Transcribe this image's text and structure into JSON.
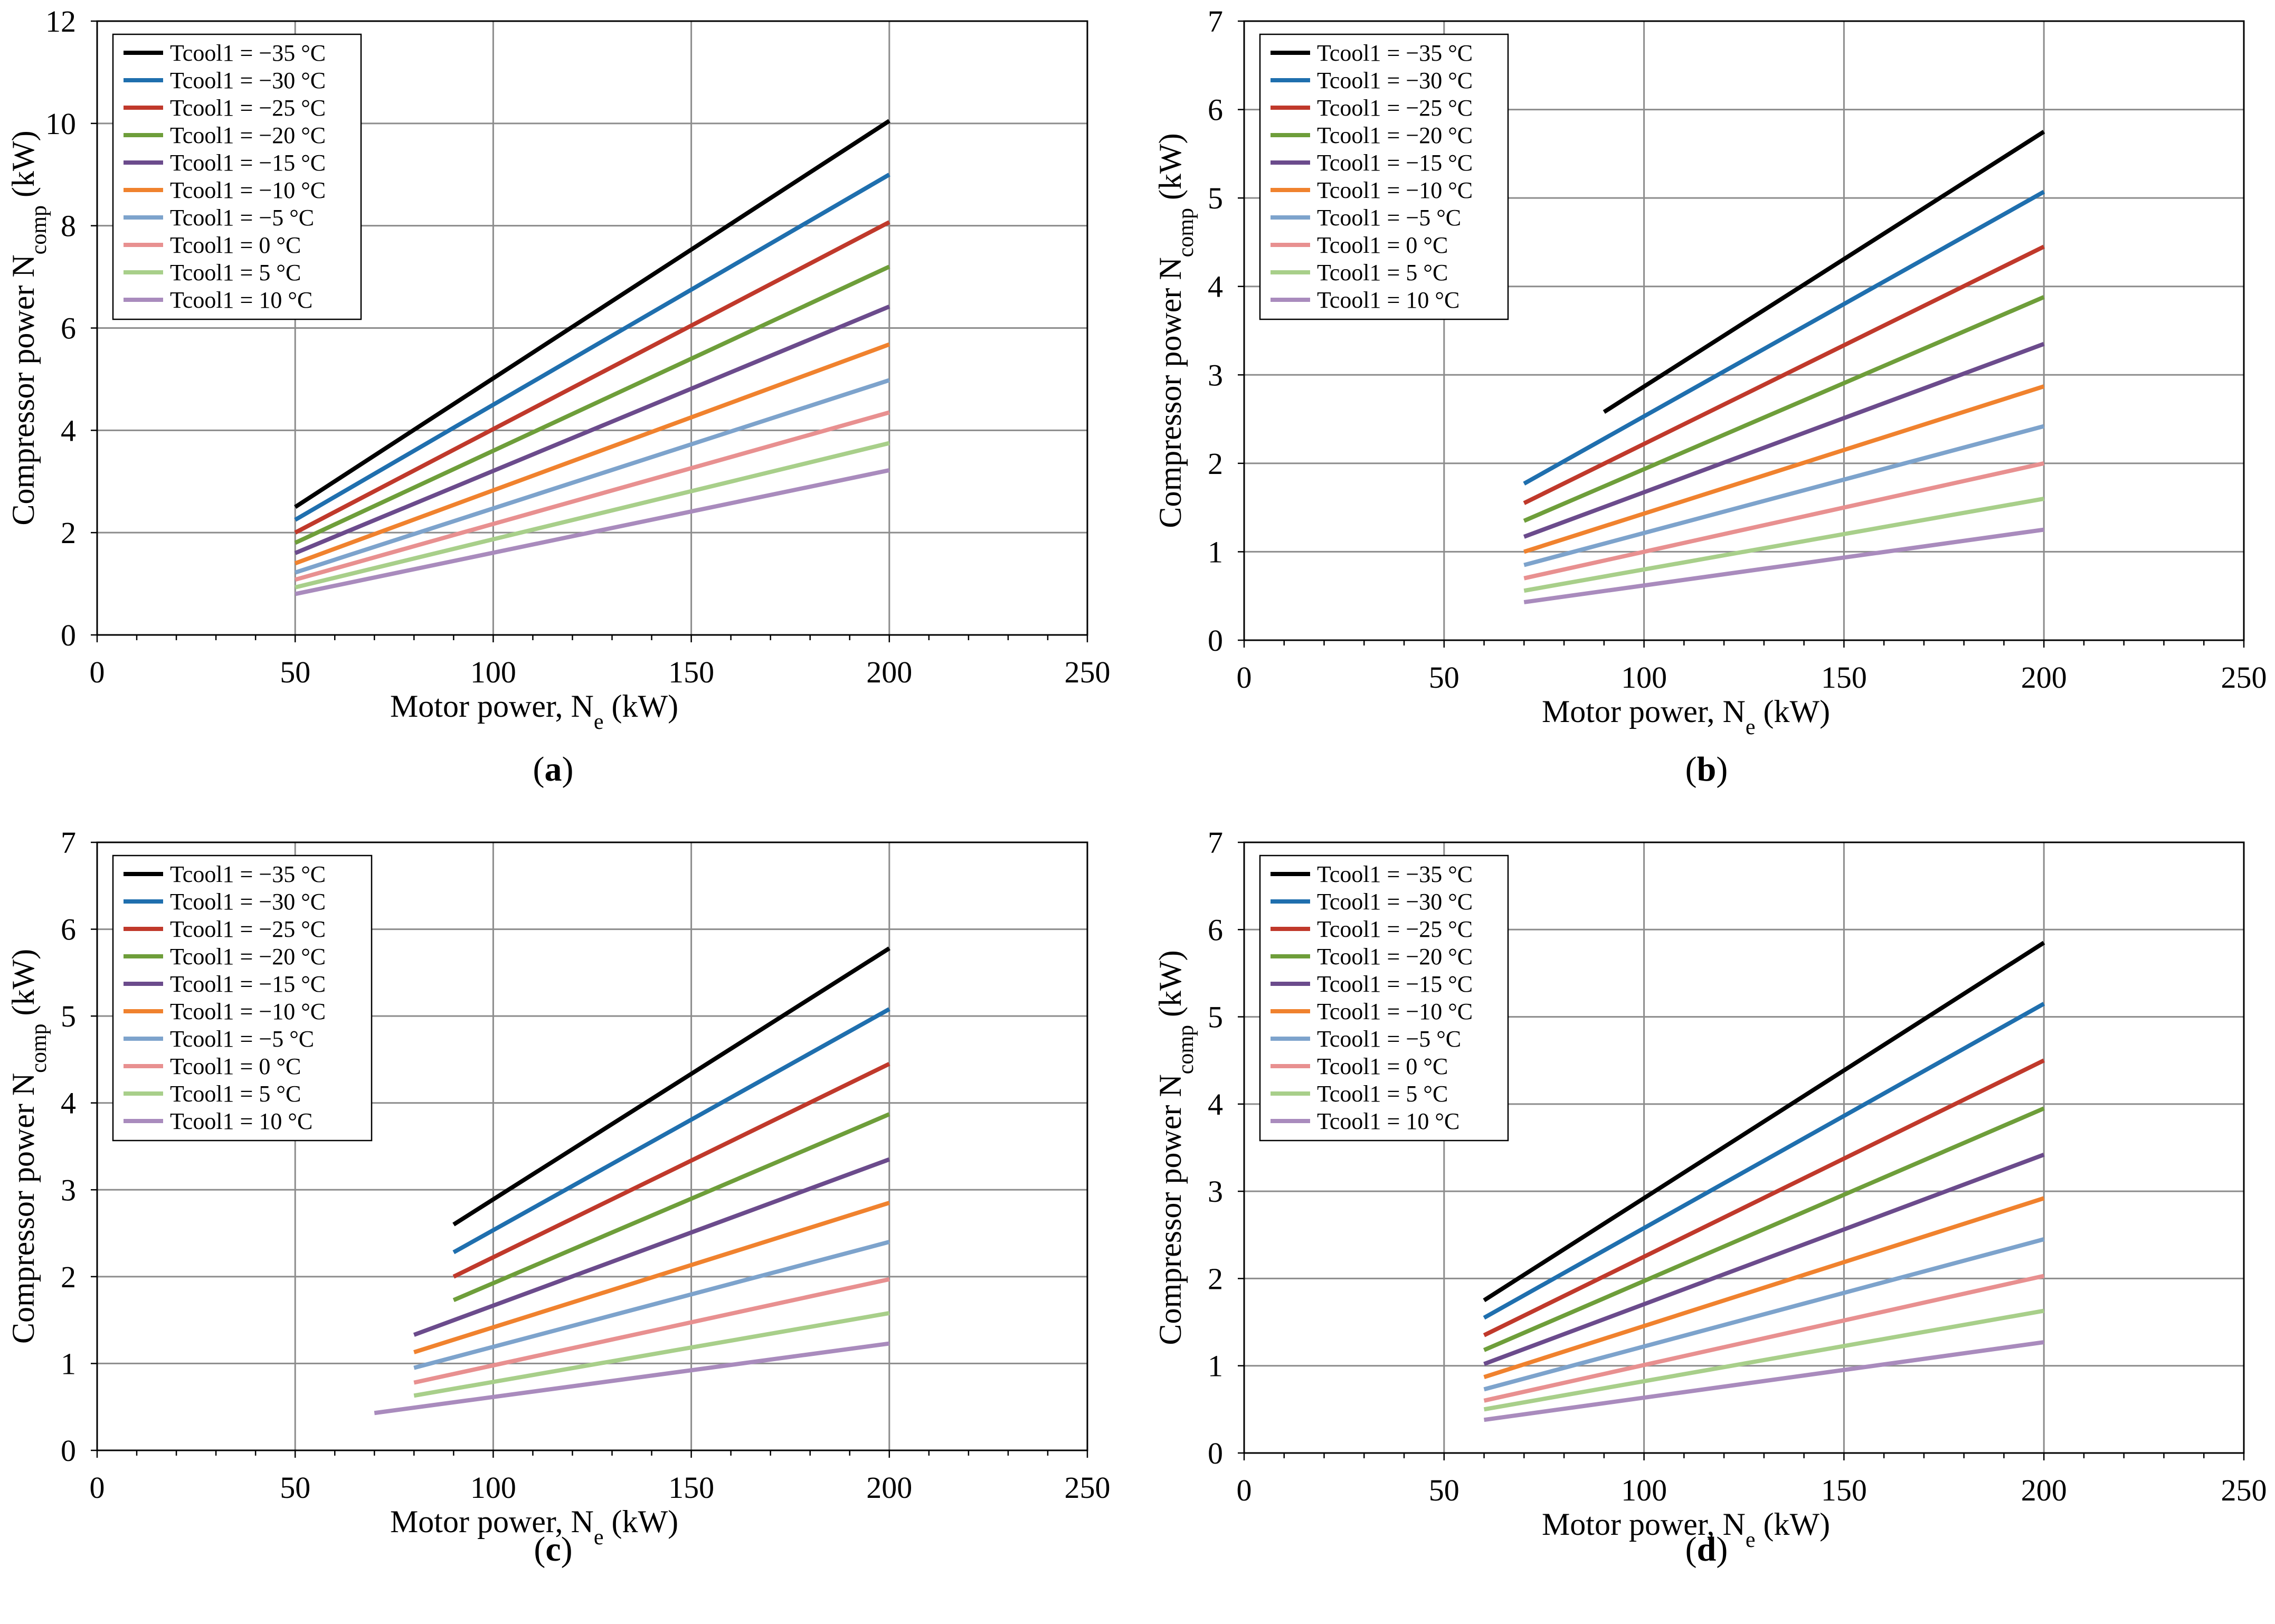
{
  "figure": {
    "panel_labels": [
      "a",
      "b",
      "c",
      "d"
    ],
    "colors": [
      "#000000",
      "#1f6fae",
      "#c0392b",
      "#6e9e3a",
      "#6b4b8c",
      "#f0822e",
      "#7da3cc",
      "#e89090",
      "#a8cf8a",
      "#a98bbd"
    ]
  },
  "chart_data": [
    {
      "type": "line",
      "title": "",
      "xlabel": "Motor power, N",
      "xlabel_sub": "e",
      "xlabel_unit": " (kW)",
      "ylabel": "Compressor power N",
      "ylabel_sub": "comp",
      "ylabel_unit": " (kW)",
      "xlim": [
        0,
        250
      ],
      "ylim": [
        0,
        12
      ],
      "xticks": [
        0,
        50,
        100,
        150,
        200,
        250
      ],
      "yticks": [
        0,
        2,
        4,
        6,
        8,
        10,
        12
      ],
      "legend": "top-left",
      "series": [
        {
          "name": "Tcool1 = −35 °C",
          "x": [
            50,
            200
          ],
          "y": [
            2.5,
            10.05
          ]
        },
        {
          "name": "Tcool1 = −30 °C",
          "x": [
            50,
            200
          ],
          "y": [
            2.25,
            9.0
          ]
        },
        {
          "name": "Tcool1 = −25 °C",
          "x": [
            50,
            200
          ],
          "y": [
            2.0,
            8.07
          ]
        },
        {
          "name": "Tcool1 = −20 °C",
          "x": [
            50,
            200
          ],
          "y": [
            1.8,
            7.2
          ]
        },
        {
          "name": "Tcool1 = −15 °C",
          "x": [
            50,
            200
          ],
          "y": [
            1.6,
            6.42
          ]
        },
        {
          "name": "Tcool1 = −10 °C",
          "x": [
            50,
            200
          ],
          "y": [
            1.4,
            5.68
          ]
        },
        {
          "name": "Tcool1 = −5 °C",
          "x": [
            50,
            200
          ],
          "y": [
            1.22,
            4.98
          ]
        },
        {
          "name": "Tcool1 = 0 °C",
          "x": [
            50,
            200
          ],
          "y": [
            1.08,
            4.35
          ]
        },
        {
          "name": "Tcool1 = 5 °C",
          "x": [
            50,
            200
          ],
          "y": [
            0.93,
            3.75
          ]
        },
        {
          "name": "Tcool1 = 10 °C",
          "x": [
            50,
            200
          ],
          "y": [
            0.8,
            3.22
          ]
        }
      ]
    },
    {
      "type": "line",
      "title": "",
      "xlabel": "Motor power, N",
      "xlabel_sub": "e",
      "xlabel_unit": " (kW)",
      "ylabel": "Compressor power N",
      "ylabel_sub": "comp",
      "ylabel_unit": " (kW)",
      "xlim": [
        0,
        250
      ],
      "ylim": [
        0,
        7
      ],
      "xticks": [
        0,
        50,
        100,
        150,
        200,
        250
      ],
      "yticks": [
        0,
        1,
        2,
        3,
        4,
        5,
        6,
        7
      ],
      "legend": "top-left",
      "series": [
        {
          "name": "Tcool1 = −35 °C",
          "x": [
            90,
            200
          ],
          "y": [
            2.58,
            5.75
          ]
        },
        {
          "name": "Tcool1 = −30 °C",
          "x": [
            70,
            200
          ],
          "y": [
            1.77,
            5.07
          ]
        },
        {
          "name": "Tcool1 = −25 °C",
          "x": [
            70,
            200
          ],
          "y": [
            1.55,
            4.45
          ]
        },
        {
          "name": "Tcool1 = −20 °C",
          "x": [
            70,
            200
          ],
          "y": [
            1.35,
            3.88
          ]
        },
        {
          "name": "Tcool1 = −15 °C",
          "x": [
            70,
            200
          ],
          "y": [
            1.17,
            3.35
          ]
        },
        {
          "name": "Tcool1 = −10 °C",
          "x": [
            70,
            200
          ],
          "y": [
            1.0,
            2.87
          ]
        },
        {
          "name": "Tcool1 = −5 °C",
          "x": [
            70,
            200
          ],
          "y": [
            0.85,
            2.42
          ]
        },
        {
          "name": "Tcool1 = 0 °C",
          "x": [
            70,
            200
          ],
          "y": [
            0.7,
            2.0
          ]
        },
        {
          "name": "Tcool1 = 5 °C",
          "x": [
            70,
            200
          ],
          "y": [
            0.56,
            1.6
          ]
        },
        {
          "name": "Tcool1 = 10 °C",
          "x": [
            70,
            200
          ],
          "y": [
            0.43,
            1.25
          ]
        }
      ]
    },
    {
      "type": "line",
      "title": "",
      "xlabel": "Motor power, N",
      "xlabel_sub": "e",
      "xlabel_unit": " (kW)",
      "ylabel": "Compressor power N",
      "ylabel_sub": "comp",
      "ylabel_unit": " (kW)",
      "xlim": [
        0,
        250
      ],
      "ylim": [
        0,
        7
      ],
      "xticks": [
        0,
        50,
        100,
        150,
        200,
        250
      ],
      "yticks": [
        0,
        1,
        2,
        3,
        4,
        5,
        6,
        7
      ],
      "legend": "top-left",
      "series": [
        {
          "name": "Tcool1 = −35 °C",
          "x": [
            90,
            200
          ],
          "y": [
            2.6,
            5.78
          ]
        },
        {
          "name": "Tcool1 = −30 °C",
          "x": [
            90,
            200
          ],
          "y": [
            2.28,
            5.08
          ]
        },
        {
          "name": "Tcool1 = −25 °C",
          "x": [
            90,
            200
          ],
          "y": [
            2.0,
            4.45
          ]
        },
        {
          "name": "Tcool1 = −20 °C",
          "x": [
            90,
            200
          ],
          "y": [
            1.73,
            3.87
          ]
        },
        {
          "name": "Tcool1 = −15 °C",
          "x": [
            80,
            200
          ],
          "y": [
            1.33,
            3.35
          ]
        },
        {
          "name": "Tcool1 = −10 °C",
          "x": [
            80,
            200
          ],
          "y": [
            1.13,
            2.85
          ]
        },
        {
          "name": "Tcool1 = −5 °C",
          "x": [
            80,
            200
          ],
          "y": [
            0.95,
            2.4
          ]
        },
        {
          "name": "Tcool1 = 0 °C",
          "x": [
            80,
            200
          ],
          "y": [
            0.78,
            1.97
          ]
        },
        {
          "name": "Tcool1 = 5 °C",
          "x": [
            80,
            200
          ],
          "y": [
            0.63,
            1.58
          ]
        },
        {
          "name": "Tcool1 = 10 °C",
          "x": [
            70,
            200
          ],
          "y": [
            0.43,
            1.23
          ]
        }
      ]
    },
    {
      "type": "line",
      "title": "",
      "xlabel": "Motor power, N",
      "xlabel_sub": "e",
      "xlabel_unit": " (kW)",
      "ylabel": "Compressor power N",
      "ylabel_sub": "comp",
      "ylabel_unit": " (kW)",
      "xlim": [
        0,
        250
      ],
      "ylim": [
        0,
        7
      ],
      "xticks": [
        0,
        50,
        100,
        150,
        200,
        250
      ],
      "yticks": [
        0,
        1,
        2,
        3,
        4,
        5,
        6,
        7
      ],
      "legend": "top-left",
      "series": [
        {
          "name": "Tcool1 = −35 °C",
          "x": [
            60,
            200
          ],
          "y": [
            1.75,
            5.85
          ]
        },
        {
          "name": "Tcool1 = −30 °C",
          "x": [
            60,
            200
          ],
          "y": [
            1.55,
            5.15
          ]
        },
        {
          "name": "Tcool1 = −25 °C",
          "x": [
            60,
            200
          ],
          "y": [
            1.35,
            4.5
          ]
        },
        {
          "name": "Tcool1 = −20 °C",
          "x": [
            60,
            200
          ],
          "y": [
            1.18,
            3.95
          ]
        },
        {
          "name": "Tcool1 = −15 °C",
          "x": [
            60,
            200
          ],
          "y": [
            1.02,
            3.42
          ]
        },
        {
          "name": "Tcool1 = −10 °C",
          "x": [
            60,
            200
          ],
          "y": [
            0.87,
            2.92
          ]
        },
        {
          "name": "Tcool1 = −5 °C",
          "x": [
            60,
            200
          ],
          "y": [
            0.73,
            2.45
          ]
        },
        {
          "name": "Tcool1 = 0 °C",
          "x": [
            60,
            200
          ],
          "y": [
            0.6,
            2.03
          ]
        },
        {
          "name": "Tcool1 = 5 °C",
          "x": [
            60,
            200
          ],
          "y": [
            0.5,
            1.63
          ]
        },
        {
          "name": "Tcool1 = 10 °C",
          "x": [
            60,
            200
          ],
          "y": [
            0.38,
            1.27
          ]
        }
      ]
    }
  ]
}
